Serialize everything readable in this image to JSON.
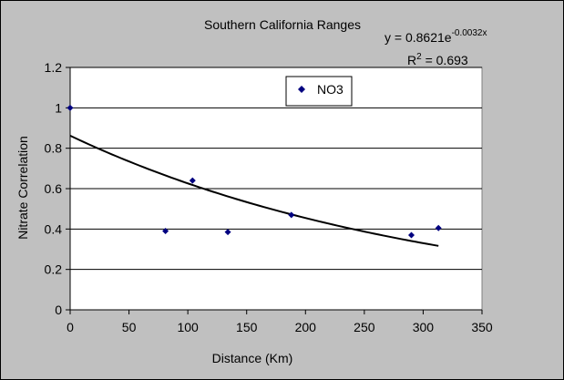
{
  "chart_data": {
    "type": "scatter",
    "title": "Southern California Ranges",
    "xlabel": "Distance (Km)",
    "ylabel": "Nitrate Correlation",
    "xlim": [
      0,
      350
    ],
    "ylim": [
      0,
      1.2
    ],
    "x_ticks": [
      "0",
      "50",
      "100",
      "150",
      "200",
      "250",
      "300",
      "350"
    ],
    "y_ticks": [
      "0",
      "0.2",
      "0.4",
      "0.6",
      "0.8",
      "1",
      "1.2"
    ],
    "grid": "horizontal",
    "legend_position": "top-center",
    "series": [
      {
        "name": "NO3",
        "color": "#000080",
        "marker": "diamond",
        "x": [
          0,
          81,
          104,
          134,
          188,
          290,
          313
        ],
        "y": [
          1.0,
          0.39,
          0.64,
          0.385,
          0.47,
          0.37,
          0.405
        ]
      }
    ],
    "trendline": {
      "type": "exponential",
      "coef_a": 0.8621,
      "coef_b": -0.0032,
      "x_range": [
        0,
        313
      ],
      "equation_base": "y = 0.8621e",
      "equation_exp": "-0.0032x",
      "r2_base": "R",
      "r2_sup": "2",
      "r2_value": " = 0.693"
    }
  }
}
